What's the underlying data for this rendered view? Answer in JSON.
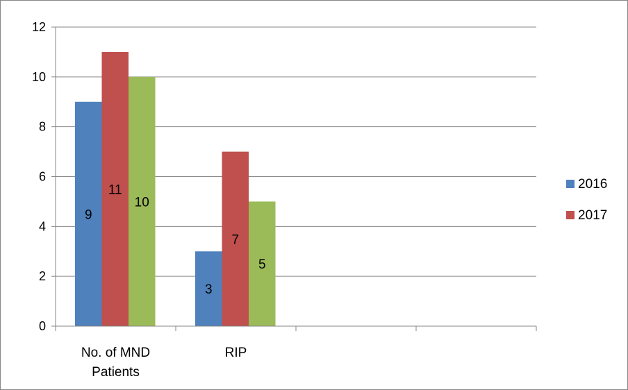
{
  "chart_data": {
    "type": "bar",
    "categories": [
      "No. of MND Patients",
      "RIP",
      "",
      ""
    ],
    "category_lines": [
      [
        "No. of MND",
        "Patients"
      ],
      [
        "RIP"
      ],
      [],
      []
    ],
    "series": [
      {
        "name": "2016",
        "color": "#4F81BD",
        "values": [
          9,
          3,
          null,
          null
        ],
        "labels": [
          "9",
          "3",
          "",
          ""
        ]
      },
      {
        "name": "2017",
        "color": "#C0504D",
        "values": [
          11,
          7,
          null,
          null
        ],
        "labels": [
          "11",
          "7",
          "",
          ""
        ]
      },
      {
        "name": "",
        "color": "#9BBB59",
        "values": [
          10,
          5,
          null,
          null
        ],
        "labels": [
          "10",
          "5",
          "",
          ""
        ]
      }
    ],
    "ylim": [
      0,
      12
    ],
    "yticks": [
      "0",
      "2",
      "4",
      "6",
      "8",
      "10",
      "12"
    ],
    "grid": true,
    "legend_position": "right",
    "title": "",
    "xlabel": "",
    "ylabel": ""
  }
}
